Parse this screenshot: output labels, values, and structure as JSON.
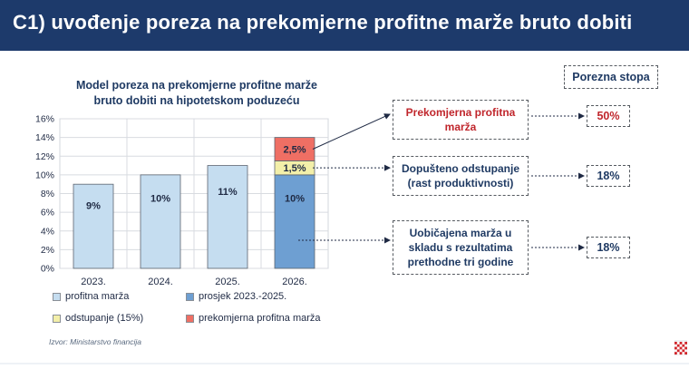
{
  "header": {
    "title": "C1) uvođenje poreza na prekomjerne profitne marže bruto dobiti"
  },
  "chart_data": {
    "type": "bar",
    "stacked": true,
    "title": "Model poreza na prekomjerne profitne marže bruto dobiti na hipotetskom poduzeću",
    "categories": [
      "2023.",
      "2024.",
      "2025.",
      "2026."
    ],
    "ylim": [
      0,
      16
    ],
    "yticks": [
      0,
      2,
      4,
      6,
      8,
      10,
      12,
      14,
      16
    ],
    "ytick_labels": [
      "0%",
      "2%",
      "4%",
      "6%",
      "8%",
      "10%",
      "12%",
      "14%",
      "16%"
    ],
    "grid": true,
    "legend_position": "bottom",
    "series": [
      {
        "name": "profitna marža",
        "values": [
          9,
          10,
          11,
          0
        ],
        "labels": [
          "9%",
          "10%",
          "11%",
          ""
        ],
        "color": "#c5ddf0"
      },
      {
        "name": "prosjek 2023.-2025.",
        "values": [
          0,
          0,
          0,
          10
        ],
        "labels": [
          "",
          "",
          "",
          "10%"
        ],
        "color": "#6e9fd2"
      },
      {
        "name": "odstupanje (15%)",
        "values": [
          0,
          0,
          0,
          1.5
        ],
        "labels": [
          "",
          "",
          "",
          "1,5%"
        ],
        "color": "#f3efa9"
      },
      {
        "name": "prekomjerna profitna marža",
        "values": [
          0,
          0,
          0,
          2.5
        ],
        "labels": [
          "",
          "",
          "",
          "2,5%"
        ],
        "color": "#ef6f64"
      }
    ]
  },
  "right_panel": {
    "rate_header": "Porezna stopa",
    "items": [
      {
        "label": "Prekomjerna profitna marža",
        "rate": "50%",
        "label_color": "#c0262c",
        "rate_color": "#c0262c"
      },
      {
        "label": "Dopušteno odstupanje (rast produktivnosti)",
        "rate": "18%",
        "label_color": "#1f3a63",
        "rate_color": "#1f3a63"
      },
      {
        "label": "Uobičajena marža u skladu s rezultatima prethodne tri godine",
        "rate": "18%",
        "label_color": "#1f3a63",
        "rate_color": "#1f3a63"
      }
    ]
  },
  "source": "Izvor: Ministarstvo financija"
}
